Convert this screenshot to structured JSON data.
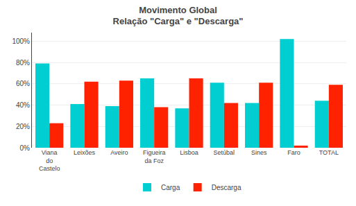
{
  "chart_data": {
    "type": "bar",
    "title": "Movimento Global\nRelação \"Carga\" e \"Descarga\"",
    "categories": [
      "Viana\ndo\nCastelo",
      "Leixões",
      "Aveiro",
      "Figueira\nda Foz",
      "Lisboa",
      "Setúbal",
      "Sines",
      "Faro",
      "TOTAL"
    ],
    "series": [
      {
        "name": "Carga",
        "color": "#00CED1",
        "values": [
          79,
          41,
          39,
          65,
          37,
          61,
          42,
          102,
          44
        ]
      },
      {
        "name": "Descarga",
        "color": "#FF2200",
        "values": [
          23,
          62,
          63,
          38,
          65,
          42,
          61,
          2,
          59
        ]
      }
    ],
    "ylim": [
      0,
      108
    ],
    "yticks": [
      {
        "value": 0,
        "label": "0%"
      },
      {
        "value": 20,
        "label": "20%"
      },
      {
        "value": 40,
        "label": "40%"
      },
      {
        "value": 60,
        "label": "60%"
      },
      {
        "value": 80,
        "label": "80%"
      },
      {
        "value": 100,
        "label": "100%"
      }
    ],
    "grid": true,
    "legend": "bottom"
  }
}
